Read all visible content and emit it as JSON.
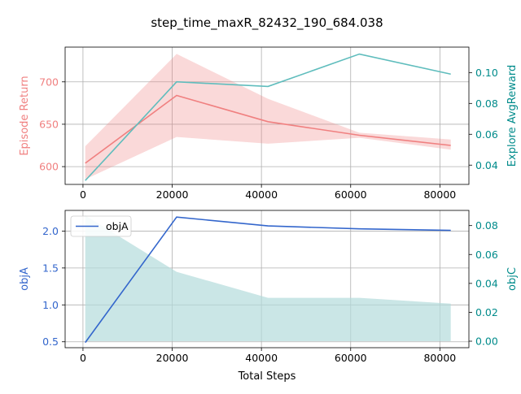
{
  "figure": {
    "title": "step_time_maxR_82432_190_684.038"
  },
  "chart_data": [
    {
      "type": "line",
      "title": "",
      "xlabel": "",
      "xlim": [
        -4000,
        86500
      ],
      "xticks": [
        0,
        20000,
        40000,
        60000,
        80000
      ],
      "left_axis": {
        "label": "Episode Return",
        "color": "#f08080",
        "ylim": [
          579,
          741
        ],
        "ticks": [
          600,
          650,
          700
        ]
      },
      "right_axis": {
        "label": "Explore AvgReward",
        "color": "#008b8b",
        "ylim": [
          0.0275,
          0.1165
        ],
        "ticks": [
          0.04,
          0.06,
          0.08,
          0.1
        ],
        "tick_labels": [
          "0.04",
          "0.06",
          "0.08",
          "0.10"
        ]
      },
      "series": [
        {
          "axis": "left",
          "kind": "line",
          "color": "#f08080",
          "x": [
            512,
            20992,
            41472,
            61952,
            82432
          ],
          "y": [
            604,
            684,
            653,
            637,
            625
          ]
        },
        {
          "axis": "left",
          "kind": "band",
          "color": "#f08080",
          "x": [
            512,
            20992,
            41472,
            61952,
            82432
          ],
          "lower": [
            585,
            635,
            627,
            634,
            620
          ],
          "upper": [
            624,
            733,
            680,
            640,
            632
          ]
        },
        {
          "axis": "right",
          "kind": "line",
          "color": "#5fbdbd",
          "x": [
            512,
            20992,
            41472,
            61952,
            82432
          ],
          "y": [
            0.03,
            0.094,
            0.091,
            0.112,
            0.099
          ]
        }
      ]
    },
    {
      "type": "line",
      "title": "",
      "xlabel": "Total Steps",
      "xlim": [
        -4000,
        86500
      ],
      "xticks": [
        0,
        20000,
        40000,
        60000,
        80000
      ],
      "legend": {
        "placement": "upper-left",
        "entries": [
          "objA"
        ]
      },
      "left_axis": {
        "label": "objA",
        "color": "#3366cc",
        "ylim": [
          0.42,
          2.28
        ],
        "ticks": [
          0.5,
          1.0,
          1.5,
          2.0
        ],
        "tick_labels": [
          "0.5",
          "1.0",
          "1.5",
          "2.0"
        ]
      },
      "right_axis": {
        "label": "objC",
        "color": "#008b8b",
        "ylim": [
          -0.0045,
          0.0905
        ],
        "ticks": [
          0.0,
          0.02,
          0.04,
          0.06,
          0.08
        ],
        "tick_labels": [
          "0.00",
          "0.02",
          "0.04",
          "0.06",
          "0.08"
        ]
      },
      "series": [
        {
          "axis": "right",
          "kind": "area",
          "color": "#b4dcdc",
          "x": [
            512,
            20992,
            41472,
            61952,
            82432
          ],
          "y": [
            0.087,
            0.048,
            0.03,
            0.03,
            0.026
          ]
        },
        {
          "axis": "left",
          "kind": "line",
          "color": "#3366cc",
          "name": "objA",
          "x": [
            512,
            20992,
            41472,
            61952,
            82432
          ],
          "y": [
            0.49,
            2.19,
            2.07,
            2.03,
            2.01
          ]
        }
      ]
    }
  ]
}
